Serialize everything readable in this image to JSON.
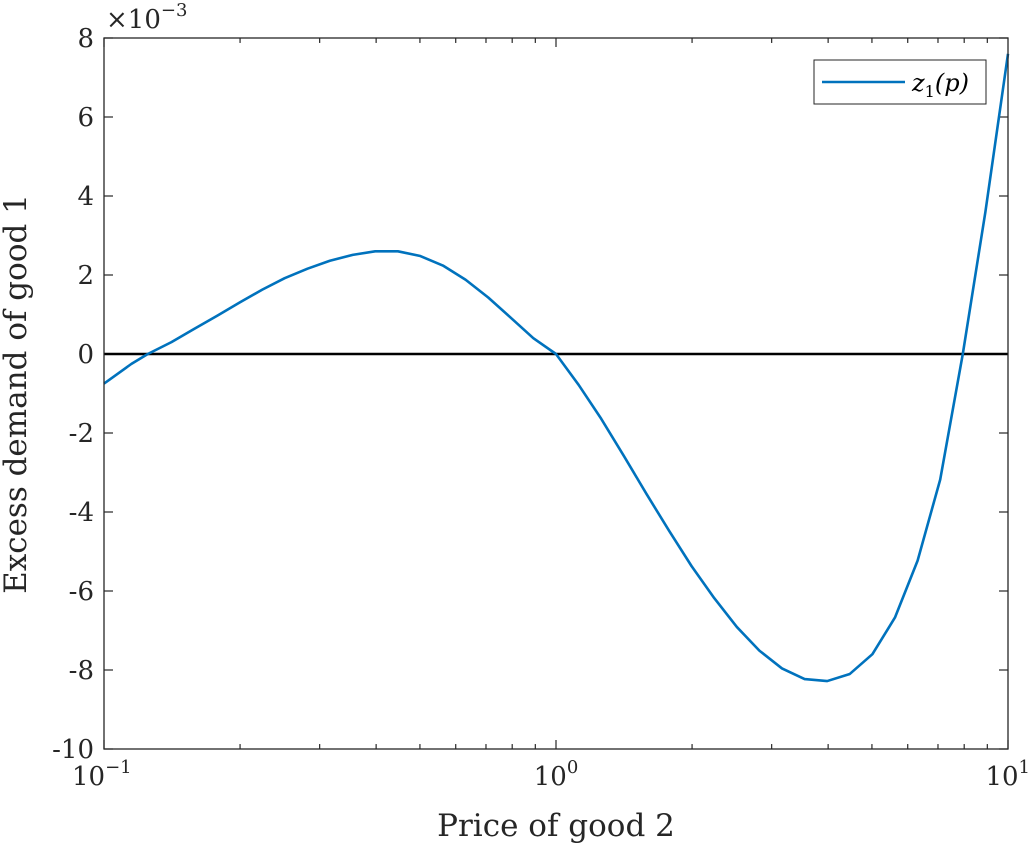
{
  "chart_data": {
    "type": "line",
    "xlabel": "Price of good 2",
    "ylabel": "Excess demand of good 1",
    "x_scale": "log",
    "xlim": [
      0.1,
      10
    ],
    "ylim": [
      -0.01,
      0.008
    ],
    "y_multiplier_label": {
      "base": "×10",
      "exponent": "−3"
    },
    "x_ticks": [
      {
        "value": 0.1,
        "base": "10",
        "exponent": "−1"
      },
      {
        "value": 1,
        "base": "10",
        "exponent": "0"
      },
      {
        "value": 10,
        "base": "10",
        "exponent": "1"
      }
    ],
    "y_ticks": [
      {
        "value": -0.01,
        "label": "-10"
      },
      {
        "value": -0.008,
        "label": "-8"
      },
      {
        "value": -0.006,
        "label": "-6"
      },
      {
        "value": -0.004,
        "label": "-4"
      },
      {
        "value": -0.002,
        "label": "-2"
      },
      {
        "value": 0,
        "label": "0"
      },
      {
        "value": 0.002,
        "label": "2"
      },
      {
        "value": 0.004,
        "label": "4"
      },
      {
        "value": 0.006,
        "label": "6"
      },
      {
        "value": 0.008,
        "label": "8"
      }
    ],
    "reference_line": {
      "y": 0,
      "color": "#000000"
    },
    "legend": {
      "placement": "top-right",
      "base": "z",
      "subscript": "1",
      "argument": "(p)"
    },
    "series": [
      {
        "color": "#0072BD",
        "x": [
          0.1,
          0.115,
          0.125,
          0.141,
          0.158,
          0.178,
          0.2,
          0.224,
          0.251,
          0.282,
          0.316,
          0.355,
          0.398,
          0.447,
          0.501,
          0.562,
          0.631,
          0.708,
          0.794,
          0.891,
          1.0,
          1.122,
          1.259,
          1.413,
          1.585,
          1.778,
          1.995,
          2.239,
          2.512,
          2.818,
          3.162,
          3.548,
          3.981,
          4.467,
          5.012,
          5.623,
          6.31,
          7.079,
          7.943,
          8.913,
          10.0
        ],
        "y": [
          -0.00075,
          -0.00025,
          0.0,
          0.0003,
          0.00063,
          0.00097,
          0.00131,
          0.00163,
          0.00192,
          0.00216,
          0.00236,
          0.00251,
          0.0026,
          0.0026,
          0.00248,
          0.00224,
          0.00188,
          0.00143,
          0.00092,
          0.0004,
          0.0,
          -0.00078,
          -0.00164,
          -0.00258,
          -0.00354,
          -0.00447,
          -0.00537,
          -0.00618,
          -0.00691,
          -0.00751,
          -0.00796,
          -0.00823,
          -0.00828,
          -0.0081,
          -0.0076,
          -0.00667,
          -0.00523,
          -0.00318,
          0.0,
          0.0036,
          0.0076
        ]
      }
    ]
  }
}
